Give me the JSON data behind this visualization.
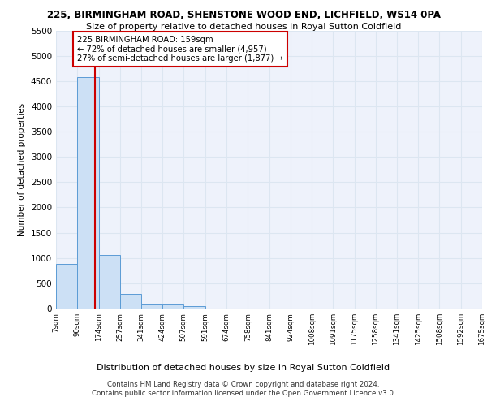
{
  "title_line1": "225, BIRMINGHAM ROAD, SHENSTONE WOOD END, LICHFIELD, WS14 0PA",
  "title_line2": "Size of property relative to detached houses in Royal Sutton Coldfield",
  "xlabel": "Distribution of detached houses by size in Royal Sutton Coldfield",
  "ylabel": "Number of detached properties",
  "footnote1": "Contains HM Land Registry data © Crown copyright and database right 2024.",
  "footnote2": "Contains public sector information licensed under the Open Government Licence v3.0.",
  "bar_color": "#cce0f5",
  "bar_edge_color": "#5b9bd5",
  "grid_color": "#dce6f1",
  "annotation_box_color": "#cc0000",
  "red_line_color": "#cc0000",
  "bin_labels": [
    "7sqm",
    "90sqm",
    "174sqm",
    "257sqm",
    "341sqm",
    "424sqm",
    "507sqm",
    "591sqm",
    "674sqm",
    "758sqm",
    "841sqm",
    "924sqm",
    "1008sqm",
    "1091sqm",
    "1175sqm",
    "1258sqm",
    "1341sqm",
    "1425sqm",
    "1508sqm",
    "1592sqm",
    "1675sqm"
  ],
  "bin_edges": [
    7,
    90,
    174,
    257,
    341,
    424,
    507,
    591,
    674,
    758,
    841,
    924,
    1008,
    1091,
    1175,
    1258,
    1341,
    1425,
    1508,
    1592,
    1675
  ],
  "bar_heights": [
    880,
    4570,
    1060,
    290,
    85,
    80,
    50,
    0,
    0,
    0,
    0,
    0,
    0,
    0,
    0,
    0,
    0,
    0,
    0,
    0
  ],
  "property_size": 159,
  "annotation_line1": "225 BIRMINGHAM ROAD: 159sqm",
  "annotation_line2": "← 72% of detached houses are smaller (4,957)",
  "annotation_line3": "27% of semi-detached houses are larger (1,877) →",
  "ylim": [
    0,
    5500
  ],
  "yticks": [
    0,
    500,
    1000,
    1500,
    2000,
    2500,
    3000,
    3500,
    4000,
    4500,
    5000,
    5500
  ],
  "background_color": "#eef2fb"
}
